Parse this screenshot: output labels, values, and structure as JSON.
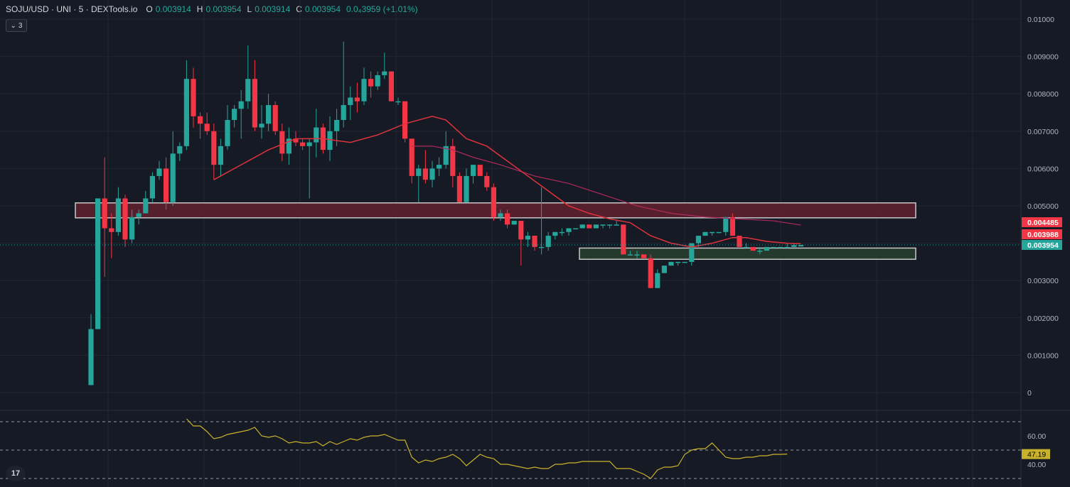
{
  "header": {
    "symbol": "SOJU/USD · UNI · 5 · DEXTools.io",
    "open_label": "O",
    "open": "0.003914",
    "high_label": "H",
    "high": "0.003954",
    "low_label": "L",
    "low": "0.003914",
    "close_label": "C",
    "close": "0.003954",
    "change": "0.0₄3959 (+1.01%)",
    "collapse_count": "3"
  },
  "colors": {
    "background": "#161a25",
    "grid": "#222631",
    "up": "#26a69a",
    "down": "#f23645",
    "ma_fast": "#e0323c",
    "ma_slow": "#b02a5e",
    "rsi": "#c9b22b",
    "resistance_zone": "#6b2230",
    "support_zone": "#2b4430"
  },
  "logo_text": "17",
  "chart_data": {
    "type": "candlestick",
    "price_axis": {
      "ylim": [
        0,
        0.0105
      ],
      "ticks": [
        "0",
        "0.001000",
        "0.002000",
        "0.003000",
        "0.004000",
        "0.005000",
        "0.006000",
        "0.007000",
        "0.008000",
        "0.009000",
        "0.01000"
      ],
      "tick_values": [
        0,
        0.001,
        0.002,
        0.003,
        0.004,
        0.005,
        0.006,
        0.007,
        0.008,
        0.009,
        0.01
      ]
    },
    "price_tags": [
      {
        "text": "0.004485",
        "value": 0.004485,
        "color": "#f23645"
      },
      {
        "text": "0.003988",
        "value": 0.003988,
        "color": "#f23645"
      },
      {
        "text": "0.003954",
        "value": 0.003954,
        "color": "#26a69a"
      }
    ],
    "zones": [
      {
        "name": "resistance-zone",
        "from": 0.00468,
        "to": 0.00508
      },
      {
        "name": "support-zone",
        "from": 0.00357,
        "to": 0.00387
      }
    ],
    "candles": [
      [
        0.0002,
        0.0021,
        0.0002,
        0.0017
      ],
      [
        0.0017,
        0.0052,
        0.0017,
        0.0052
      ],
      [
        0.0052,
        0.0063,
        0.0031,
        0.0044
      ],
      [
        0.0044,
        0.0048,
        0.0036,
        0.0043
      ],
      [
        0.0043,
        0.0055,
        0.0042,
        0.0052
      ],
      [
        0.0052,
        0.0053,
        0.0039,
        0.0041
      ],
      [
        0.0041,
        0.0049,
        0.004,
        0.0047
      ],
      [
        0.0047,
        0.0049,
        0.0045,
        0.0048
      ],
      [
        0.0048,
        0.0054,
        0.0048,
        0.0052
      ],
      [
        0.0052,
        0.0059,
        0.0051,
        0.0058
      ],
      [
        0.0058,
        0.0062,
        0.0057,
        0.006
      ],
      [
        0.006,
        0.0063,
        0.0049,
        0.0051
      ],
      [
        0.0051,
        0.007,
        0.005,
        0.0064
      ],
      [
        0.0064,
        0.0067,
        0.0062,
        0.0066
      ],
      [
        0.0066,
        0.0089,
        0.0065,
        0.0084
      ],
      [
        0.0084,
        0.0087,
        0.0071,
        0.0074
      ],
      [
        0.0074,
        0.0075,
        0.0068,
        0.0072
      ],
      [
        0.0072,
        0.0075,
        0.0069,
        0.007
      ],
      [
        0.007,
        0.0072,
        0.0057,
        0.0061
      ],
      [
        0.0061,
        0.0068,
        0.0058,
        0.0066
      ],
      [
        0.0066,
        0.0077,
        0.0065,
        0.0073
      ],
      [
        0.0073,
        0.0077,
        0.0071,
        0.0076
      ],
      [
        0.0076,
        0.0081,
        0.0068,
        0.0078
      ],
      [
        0.0078,
        0.0093,
        0.0076,
        0.0084
      ],
      [
        0.0084,
        0.0089,
        0.007,
        0.0071
      ],
      [
        0.0071,
        0.0077,
        0.0068,
        0.0072
      ],
      [
        0.0072,
        0.008,
        0.007,
        0.0077
      ],
      [
        0.0077,
        0.0078,
        0.0069,
        0.007
      ],
      [
        0.007,
        0.0072,
        0.0062,
        0.0064
      ],
      [
        0.0064,
        0.0071,
        0.0061,
        0.0068
      ],
      [
        0.0068,
        0.007,
        0.0066,
        0.0067
      ],
      [
        0.0067,
        0.0068,
        0.0065,
        0.0066
      ],
      [
        0.0066,
        0.0068,
        0.0052,
        0.0067
      ],
      [
        0.0067,
        0.0076,
        0.0063,
        0.0071
      ],
      [
        0.0071,
        0.0072,
        0.0064,
        0.0065
      ],
      [
        0.0065,
        0.0074,
        0.0062,
        0.007
      ],
      [
        0.007,
        0.0076,
        0.0066,
        0.0073
      ],
      [
        0.0073,
        0.0094,
        0.0071,
        0.0077
      ],
      [
        0.0077,
        0.0082,
        0.0073,
        0.0079
      ],
      [
        0.0079,
        0.0083,
        0.0075,
        0.0078
      ],
      [
        0.0078,
        0.0087,
        0.0077,
        0.0084
      ],
      [
        0.0084,
        0.0086,
        0.0079,
        0.0082
      ],
      [
        0.0082,
        0.0086,
        0.0081,
        0.0085
      ],
      [
        0.0085,
        0.0091,
        0.0084,
        0.0086
      ],
      [
        0.0086,
        0.0086,
        0.0078,
        0.0078
      ],
      [
        0.0078,
        0.0079,
        0.0077,
        0.0078
      ],
      [
        0.0078,
        0.0078,
        0.0067,
        0.0068
      ],
      [
        0.0068,
        0.0068,
        0.0056,
        0.0058
      ],
      [
        0.0058,
        0.0061,
        0.0051,
        0.006
      ],
      [
        0.006,
        0.0065,
        0.0056,
        0.0057
      ],
      [
        0.0057,
        0.0062,
        0.0055,
        0.006
      ],
      [
        0.006,
        0.0063,
        0.0058,
        0.0061
      ],
      [
        0.0061,
        0.007,
        0.006,
        0.0066
      ],
      [
        0.0066,
        0.0068,
        0.0055,
        0.0058
      ],
      [
        0.0058,
        0.0059,
        0.0051,
        0.0051
      ],
      [
        0.0051,
        0.006,
        0.0051,
        0.0058
      ],
      [
        0.0058,
        0.0061,
        0.0056,
        0.0061
      ],
      [
        0.0061,
        0.0061,
        0.0058,
        0.0058
      ],
      [
        0.0058,
        0.0059,
        0.0054,
        0.0055
      ],
      [
        0.0055,
        0.0056,
        0.0046,
        0.0047
      ],
      [
        0.0047,
        0.0049,
        0.0046,
        0.0048
      ],
      [
        0.0048,
        0.0049,
        0.0044,
        0.0045
      ],
      [
        0.0045,
        0.0046,
        0.0045,
        0.0046
      ],
      [
        0.0046,
        0.0046,
        0.0034,
        0.0041
      ],
      [
        0.0041,
        0.0043,
        0.0039,
        0.0042
      ],
      [
        0.0042,
        0.0042,
        0.0038,
        0.0039
      ],
      [
        0.0039,
        0.0055,
        0.0037,
        0.0039
      ],
      [
        0.0039,
        0.0043,
        0.0038,
        0.0042
      ],
      [
        0.0042,
        0.0043,
        0.0041,
        0.0043
      ],
      [
        0.0043,
        0.0044,
        0.0042,
        0.0043
      ],
      [
        0.0043,
        0.0044,
        0.0042,
        0.0044
      ],
      [
        0.0044,
        0.0044,
        0.0044,
        0.0044
      ],
      [
        0.0044,
        0.0045,
        0.0044,
        0.0045
      ],
      [
        0.0045,
        0.0045,
        0.0044,
        0.0044
      ],
      [
        0.0044,
        0.0045,
        0.0044,
        0.0045
      ],
      [
        0.0045,
        0.0045,
        0.0044,
        0.0045
      ],
      [
        0.0045,
        0.0045,
        0.0044,
        0.0045
      ],
      [
        0.0045,
        0.0046,
        0.0045,
        0.0045
      ],
      [
        0.0045,
        0.0045,
        0.0037,
        0.0037
      ],
      [
        0.0037,
        0.0038,
        0.0037,
        0.0037
      ],
      [
        0.0037,
        0.0038,
        0.0036,
        0.0037
      ],
      [
        0.0037,
        0.0037,
        0.0036,
        0.0036
      ],
      [
        0.0036,
        0.0037,
        0.0028,
        0.0028
      ],
      [
        0.0028,
        0.0033,
        0.0028,
        0.0032
      ],
      [
        0.0032,
        0.0034,
        0.0032,
        0.0034
      ],
      [
        0.0034,
        0.0035,
        0.0034,
        0.0035
      ],
      [
        0.0035,
        0.0035,
        0.0034,
        0.0035
      ],
      [
        0.0035,
        0.0035,
        0.0035,
        0.0035
      ],
      [
        0.0035,
        0.004,
        0.0034,
        0.004
      ],
      [
        0.004,
        0.0042,
        0.0039,
        0.0042
      ],
      [
        0.0042,
        0.0043,
        0.0042,
        0.0043
      ],
      [
        0.0043,
        0.0043,
        0.0042,
        0.0043
      ],
      [
        0.0043,
        0.0043,
        0.0043,
        0.0043
      ],
      [
        0.0043,
        0.0047,
        0.0042,
        0.0047
      ],
      [
        0.0047,
        0.0048,
        0.0042,
        0.0042
      ],
      [
        0.0042,
        0.0042,
        0.0039,
        0.0039
      ],
      [
        0.0039,
        0.004,
        0.0039,
        0.0039
      ],
      [
        0.0039,
        0.0039,
        0.0038,
        0.0038
      ],
      [
        0.0038,
        0.0039,
        0.0037,
        0.0038
      ],
      [
        0.0038,
        0.0039,
        0.0038,
        0.0039
      ],
      [
        0.0039,
        0.0039,
        0.0039,
        0.0039
      ],
      [
        0.0039,
        0.0039,
        0.0039,
        0.0039
      ],
      [
        0.0039,
        0.004,
        0.0039,
        0.0039
      ],
      [
        0.0039,
        0.004,
        0.0039,
        0.00395
      ],
      [
        0.003914,
        0.003954,
        0.003914,
        0.003954
      ]
    ],
    "ma_fast": [
      [
        18,
        0.0057
      ],
      [
        22,
        0.0061
      ],
      [
        26,
        0.0065
      ],
      [
        30,
        0.0068
      ],
      [
        34,
        0.0068
      ],
      [
        38,
        0.0067
      ],
      [
        42,
        0.0069
      ],
      [
        46,
        0.0072
      ],
      [
        50,
        0.0074
      ],
      [
        52,
        0.0073
      ],
      [
        55,
        0.0068
      ],
      [
        58,
        0.0066
      ],
      [
        61,
        0.0062
      ],
      [
        64,
        0.0058
      ],
      [
        67,
        0.0054
      ],
      [
        70,
        0.005
      ],
      [
        73,
        0.0048
      ],
      [
        76,
        0.00465
      ],
      [
        79,
        0.00455
      ],
      [
        82,
        0.0042
      ],
      [
        85,
        0.004
      ],
      [
        88,
        0.0039
      ],
      [
        91,
        0.004
      ],
      [
        94,
        0.00415
      ],
      [
        96,
        0.00415
      ],
      [
        99,
        0.00405
      ],
      [
        102,
        0.004
      ],
      [
        104,
        0.003988
      ]
    ],
    "ma_slow": [
      [
        47,
        0.0066
      ],
      [
        50,
        0.0066
      ],
      [
        53,
        0.0065
      ],
      [
        56,
        0.0063
      ],
      [
        60,
        0.0061
      ],
      [
        65,
        0.0058
      ],
      [
        70,
        0.0056
      ],
      [
        75,
        0.0053
      ],
      [
        80,
        0.005
      ],
      [
        85,
        0.0048
      ],
      [
        90,
        0.0047
      ],
      [
        95,
        0.00465
      ],
      [
        100,
        0.0046
      ],
      [
        104,
        0.004485
      ]
    ],
    "rsi": {
      "ticks": [
        "60.00",
        "40.00"
      ],
      "tick_values": [
        60,
        40
      ],
      "levels": [
        70,
        50,
        30
      ],
      "last_text": "47.19",
      "last": 47.19,
      "ylim": [
        28,
        72
      ],
      "values": [
        [
          14,
          72
        ],
        [
          15,
          67
        ],
        [
          16,
          67
        ],
        [
          17,
          63
        ],
        [
          18,
          58
        ],
        [
          19,
          59
        ],
        [
          20,
          61
        ],
        [
          21,
          62
        ],
        [
          22,
          63
        ],
        [
          23,
          64
        ],
        [
          24,
          66
        ],
        [
          25,
          60
        ],
        [
          26,
          59
        ],
        [
          27,
          60
        ],
        [
          28,
          58
        ],
        [
          29,
          55
        ],
        [
          30,
          56
        ],
        [
          31,
          55
        ],
        [
          32,
          55
        ],
        [
          33,
          56
        ],
        [
          34,
          53
        ],
        [
          35,
          56
        ],
        [
          36,
          54
        ],
        [
          37,
          56
        ],
        [
          38,
          58
        ],
        [
          39,
          57
        ],
        [
          40,
          59
        ],
        [
          41,
          60
        ],
        [
          42,
          60
        ],
        [
          43,
          61
        ],
        [
          44,
          59
        ],
        [
          45,
          57
        ],
        [
          46,
          57
        ],
        [
          47,
          45
        ],
        [
          48,
          41
        ],
        [
          49,
          43
        ],
        [
          50,
          42
        ],
        [
          51,
          44
        ],
        [
          52,
          45
        ],
        [
          53,
          47
        ],
        [
          54,
          44
        ],
        [
          55,
          39
        ],
        [
          56,
          43
        ],
        [
          57,
          47
        ],
        [
          58,
          45
        ],
        [
          59,
          44
        ],
        [
          60,
          40
        ],
        [
          61,
          40
        ],
        [
          62,
          39
        ],
        [
          63,
          38
        ],
        [
          64,
          37
        ],
        [
          65,
          38
        ],
        [
          66,
          37
        ],
        [
          67,
          37
        ],
        [
          68,
          40
        ],
        [
          69,
          40
        ],
        [
          70,
          41
        ],
        [
          71,
          41
        ],
        [
          72,
          42
        ],
        [
          73,
          42
        ],
        [
          74,
          42
        ],
        [
          75,
          42
        ],
        [
          76,
          42
        ],
        [
          77,
          37
        ],
        [
          78,
          37
        ],
        [
          79,
          37
        ],
        [
          80,
          35
        ],
        [
          81,
          33
        ],
        [
          82,
          30
        ],
        [
          83,
          36
        ],
        [
          84,
          38
        ],
        [
          85,
          38
        ],
        [
          86,
          39
        ],
        [
          87,
          47
        ],
        [
          88,
          50
        ],
        [
          89,
          51
        ],
        [
          90,
          51
        ],
        [
          91,
          55
        ],
        [
          92,
          50
        ],
        [
          93,
          45
        ],
        [
          94,
          44
        ],
        [
          95,
          44
        ],
        [
          96,
          45
        ],
        [
          97,
          45
        ],
        [
          98,
          46
        ],
        [
          99,
          46
        ],
        [
          100,
          47
        ],
        [
          101,
          47
        ],
        [
          102,
          47.19
        ]
      ]
    }
  }
}
